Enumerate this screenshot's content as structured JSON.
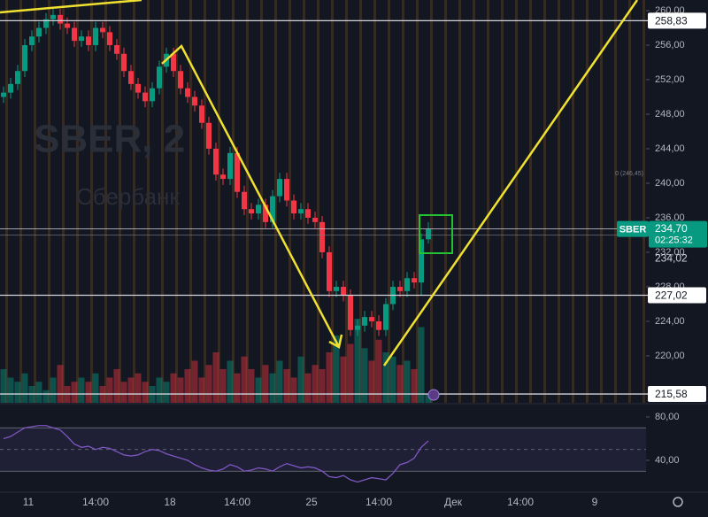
{
  "chart_data": {
    "type": "candlestick",
    "watermark_title": "SBER, 2",
    "watermark_subtitle": "Сбербанк",
    "up_color": "#089981",
    "down_color": "#f23645",
    "open": [
      250,
      250.5,
      251.5,
      253,
      256,
      257,
      258,
      259,
      259.5,
      258.5,
      258,
      256.5,
      257,
      256,
      258,
      257.5,
      256,
      255,
      253,
      251.5,
      250.5,
      249.5,
      251,
      253.5,
      255,
      253,
      251,
      250,
      249,
      247,
      244,
      241,
      240.5,
      243.5,
      239,
      237,
      236.5,
      237.5,
      235.5,
      238.5,
      240.5,
      238,
      236.5,
      237,
      236,
      235.5,
      232,
      227.5,
      228,
      227,
      223,
      223.5,
      224.5,
      224,
      223,
      226,
      228,
      227.5,
      229,
      228.5,
      233.5
    ],
    "high": [
      251.2,
      252.2,
      253.7,
      256.7,
      257.7,
      258.7,
      259.7,
      260.2,
      260.2,
      259.2,
      258.7,
      257.7,
      257.7,
      258.7,
      258.7,
      258.2,
      256.7,
      255.7,
      253.7,
      252.2,
      251.2,
      251.7,
      254.2,
      255.7,
      255.7,
      253.7,
      251.7,
      250.7,
      249.7,
      247.7,
      244.7,
      241.7,
      244.2,
      244.2,
      239.7,
      237.7,
      238.2,
      238.2,
      239.2,
      241.2,
      241.2,
      238.7,
      237.7,
      237.7,
      236.7,
      236.2,
      232.7,
      228.7,
      228.7,
      227.7,
      224.2,
      225.2,
      225.2,
      224.7,
      226.7,
      228.7,
      228.7,
      229.7,
      229.7,
      234.2,
      235.5
    ],
    "low": [
      249.3,
      249.8,
      250.8,
      252.3,
      255.3,
      256.3,
      257.3,
      258.3,
      257.8,
      257.3,
      255.8,
      255.8,
      255.3,
      255.3,
      256.8,
      255.3,
      254.3,
      252.3,
      250.8,
      249.8,
      248.8,
      248.8,
      250.3,
      252.8,
      252.3,
      250.3,
      249.3,
      248.3,
      246.3,
      243.3,
      240.3,
      239.8,
      239.8,
      238.3,
      236.3,
      235.8,
      235.8,
      234.8,
      234.8,
      237.8,
      237.3,
      235.8,
      235.8,
      235.3,
      234.8,
      231.3,
      226.8,
      226.8,
      226.3,
      222.3,
      222.3,
      222.8,
      223.3,
      222.3,
      222.3,
      225.3,
      226.8,
      226.8,
      227.8,
      227.0,
      233.0
    ],
    "close": [
      250.5,
      251.5,
      253,
      256,
      257,
      258,
      259,
      259.5,
      258.5,
      258,
      256.5,
      257,
      256,
      258,
      257.5,
      256,
      255,
      253,
      251.5,
      250.5,
      249.5,
      251,
      253.5,
      255,
      253,
      251,
      250,
      249,
      247,
      244,
      241,
      240.5,
      243.5,
      239,
      237,
      236.5,
      237.5,
      235.5,
      238.5,
      240.5,
      238,
      236.5,
      237,
      236,
      235.5,
      232,
      227.5,
      228,
      227,
      223,
      223.5,
      224.5,
      224,
      223,
      226,
      228,
      227.5,
      229,
      228.5,
      233.5,
      234.7
    ],
    "volume": [
      40,
      30,
      25,
      35,
      20,
      25,
      15,
      30,
      45,
      20,
      25,
      30,
      25,
      35,
      20,
      30,
      40,
      25,
      30,
      35,
      25,
      20,
      30,
      25,
      35,
      30,
      40,
      50,
      30,
      45,
      60,
      40,
      50,
      35,
      55,
      40,
      30,
      45,
      35,
      50,
      40,
      30,
      55,
      35,
      45,
      40,
      60,
      80,
      55,
      70,
      100,
      65,
      50,
      75,
      60,
      55,
      45,
      50,
      40,
      90,
      10
    ],
    "volume_lim": [
      0,
      100
    ],
    "ylim": [
      214.56,
      261.23
    ],
    "yticks": [
      {
        "value": 220,
        "label": "220,00"
      },
      {
        "value": 224,
        "label": "224,00"
      },
      {
        "value": 228,
        "label": "228,00"
      },
      {
        "value": 232,
        "label": "232,00"
      },
      {
        "value": 236,
        "label": "236,00"
      },
      {
        "value": 240,
        "label": "240,00"
      },
      {
        "value": 244,
        "label": "244,00"
      },
      {
        "value": 248,
        "label": "248,00"
      },
      {
        "value": 252,
        "label": "252,00"
      },
      {
        "value": 256,
        "label": "256,00"
      },
      {
        "value": 260,
        "label": "260,00"
      }
    ],
    "xlim": [
      0,
      91.25
    ],
    "xticks": [
      {
        "value": 4,
        "label": "11"
      },
      {
        "value": 13.5,
        "label": "14:00"
      },
      {
        "value": 24,
        "label": "18"
      },
      {
        "value": 33.5,
        "label": "14:00"
      },
      {
        "value": 44,
        "label": "25"
      },
      {
        "value": 53.5,
        "label": "14:00"
      },
      {
        "value": 64,
        "label": "Дек"
      },
      {
        "value": 73.5,
        "label": "14:00"
      },
      {
        "value": 84,
        "label": "9"
      }
    ],
    "levels": [
      {
        "value": 258.83,
        "label": "258,83"
      },
      {
        "value": 227.02,
        "label": "227,02"
      },
      {
        "value": 215.58,
        "label": "215,58"
      }
    ],
    "price_label": {
      "value": 234.02,
      "label": "234,02"
    },
    "current": {
      "symbol": "SBER",
      "value": 234.7,
      "label": "234,70",
      "countdown": "02:25:32"
    },
    "note": "0 (246,45)",
    "rsi": {
      "values": [
        60,
        62,
        66,
        70,
        71,
        72,
        72,
        70,
        68,
        62,
        55,
        52,
        53,
        50,
        52,
        51,
        48,
        45,
        44,
        45,
        48,
        50,
        49,
        46,
        44,
        42,
        40,
        36,
        33,
        31,
        30,
        32,
        36,
        34,
        30,
        31,
        33,
        32,
        30,
        34,
        37,
        35,
        33,
        34,
        33,
        30,
        25,
        24,
        26,
        22,
        20,
        22,
        24,
        23,
        22,
        28,
        36,
        38,
        42,
        52,
        58
      ],
      "color": "#7e57c2",
      "ylim": [
        11.4,
        90.6
      ],
      "yticks": [
        {
          "value": 40,
          "label": "40,00"
        },
        {
          "value": 80,
          "label": "80,00"
        }
      ],
      "bands": [
        30,
        70
      ],
      "midline": 50
    }
  }
}
